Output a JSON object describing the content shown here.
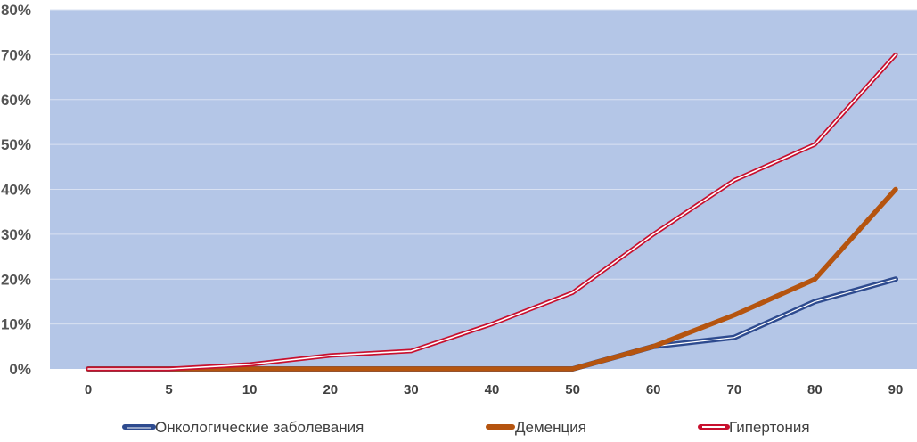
{
  "chart_data": {
    "type": "line",
    "x": [
      0,
      5,
      10,
      20,
      30,
      40,
      50,
      60,
      70,
      80,
      90
    ],
    "series": [
      {
        "name": "Онкологические заболевания",
        "values": [
          0,
          0,
          0,
          0,
          0,
          0,
          0,
          5,
          7,
          15,
          20
        ],
        "color": "#2e4b8f"
      },
      {
        "name": "Деменция",
        "values": [
          0,
          0,
          0,
          0,
          0,
          0,
          0,
          5,
          12,
          20,
          40
        ],
        "color": "#b5540f"
      },
      {
        "name": "Гипертония",
        "values": [
          0,
          0,
          1,
          3,
          4,
          10,
          17,
          30,
          42,
          50,
          70
        ],
        "color": "#c8102e"
      }
    ],
    "ylim": [
      0,
      80
    ],
    "yticks": [
      0,
      10,
      20,
      30,
      40,
      50,
      60,
      70,
      80
    ],
    "yticklabels": [
      "0%",
      "10%",
      "20%",
      "30%",
      "40%",
      "50%",
      "60%",
      "70%",
      "80%"
    ],
    "xticklabels": [
      "0",
      "5",
      "10",
      "20",
      "30",
      "40",
      "50",
      "60",
      "70",
      "80",
      "90"
    ],
    "grid": true,
    "legend": "bottom",
    "plot_background": "#b4c6e7"
  }
}
